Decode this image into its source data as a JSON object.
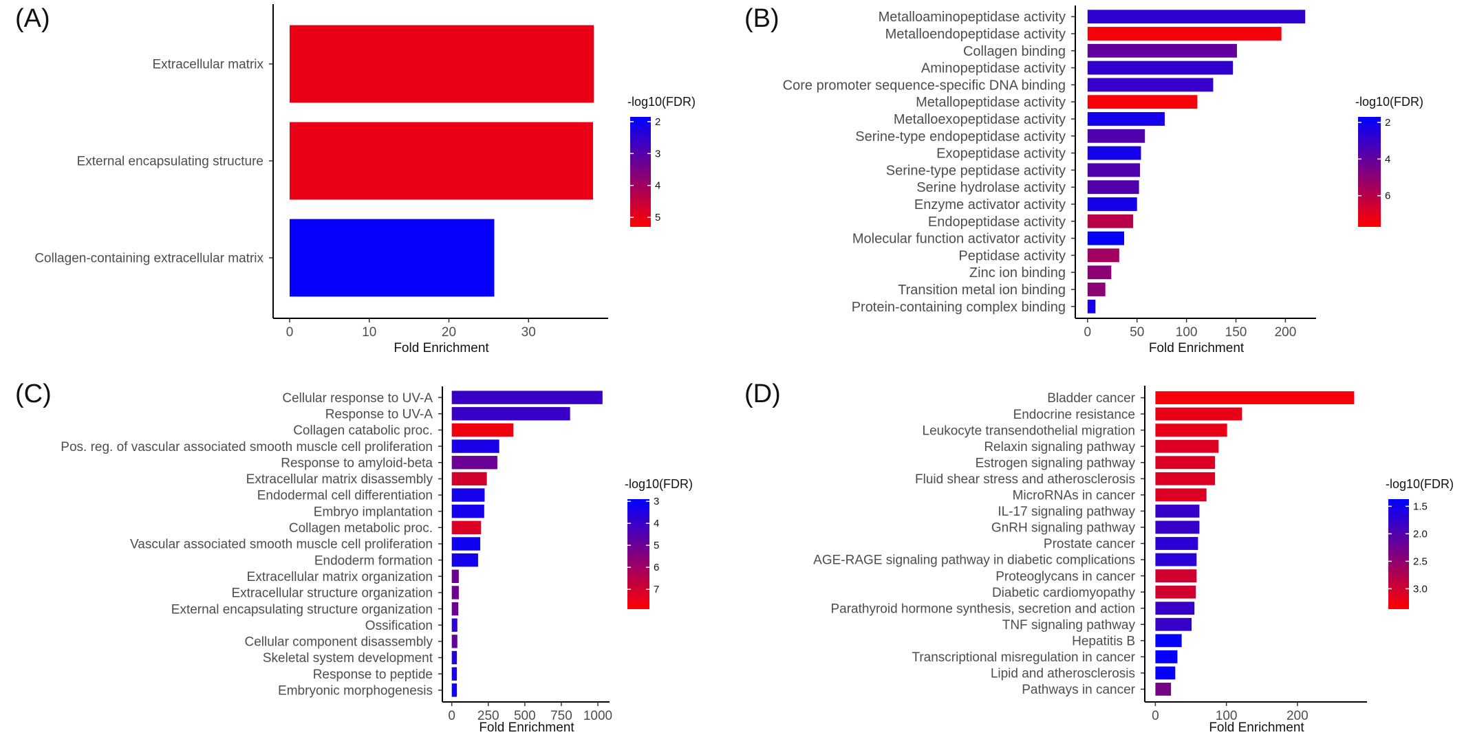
{
  "panels": [
    {
      "label": "(A)",
      "chart_data": {
        "type": "bar",
        "orientation": "horizontal",
        "categories": [
          "Extracellular matrix",
          "External encapsulating structure",
          "Collagen-containing extracellular matrix"
        ],
        "values": [
          38.2,
          38.1,
          25.7
        ],
        "fdr": [
          5.0,
          5.0,
          1.9
        ],
        "xlabel": "Fold Enrichment",
        "xlim": [
          -1.9,
          40.0
        ],
        "xticks": [
          "0",
          "10",
          "20",
          "30"
        ],
        "xtick_values": [
          0,
          10,
          20,
          30
        ],
        "colorbar": {
          "title": "-log10(FDR)",
          "range": [
            1.85,
            5.3
          ],
          "ticks": [
            "2",
            "3",
            "4",
            "5"
          ],
          "tick_values": [
            2,
            3,
            4,
            5
          ],
          "high_color": "#ff0000",
          "low_color": "#0000ff"
        }
      }
    },
    {
      "label": "(B)",
      "chart_data": {
        "type": "bar",
        "orientation": "horizontal",
        "categories": [
          "Metalloaminopeptidase activity",
          "Metalloendopeptidase activity",
          "Collagen binding",
          "Aminopeptidase activity",
          "Core promoter sequence-specific DNA binding",
          "Metallopeptidase activity",
          "Metalloexopeptidase activity",
          "Serine-type endopeptidase activity",
          "Exopeptidase activity",
          "Serine-type peptidase activity",
          "Serine hydrolase activity",
          "Enzyme activator activity",
          "Endopeptidase activity",
          "Molecular function activator activity",
          "Peptidase activity",
          "Zinc ion binding",
          "Transition metal ion binding",
          "Protein-containing complex binding"
        ],
        "values": [
          220,
          196,
          151,
          147,
          127,
          111,
          78,
          58,
          54,
          53,
          52,
          50,
          46,
          37,
          32,
          24,
          18,
          8
        ],
        "fdr": [
          2.8,
          7.5,
          4.0,
          2.8,
          3.0,
          7.5,
          2.2,
          3.6,
          2.2,
          3.6,
          3.6,
          2.2,
          6.0,
          1.8,
          5.5,
          5.0,
          5.0,
          2.2
        ],
        "xlabel": "Fold Enrichment",
        "xlim": [
          -11,
          231
        ],
        "xticks": [
          "0",
          "50",
          "100",
          "150",
          "200"
        ],
        "xtick_values": [
          0,
          50,
          100,
          150,
          200
        ],
        "colorbar": {
          "title": "-log10(FDR)",
          "range": [
            1.7,
            7.7
          ],
          "ticks": [
            "2",
            "4",
            "6"
          ],
          "tick_values": [
            2,
            4,
            6
          ],
          "high_color": "#ff0000",
          "low_color": "#0000ff"
        }
      }
    },
    {
      "label": "(C)",
      "chart_data": {
        "type": "bar",
        "orientation": "horizontal",
        "categories": [
          "Cellular response to UV-A",
          "Response to UV-A",
          "Collagen catabolic proc.",
          "Pos. reg. of vascular associated smooth muscle cell proliferation",
          "Response to amyloid-beta",
          "Extracellular matrix disassembly",
          "Endodermal cell differentiation",
          "Embryo implantation",
          "Collagen metabolic proc.",
          "Vascular associated smooth muscle cell proliferation",
          "Endoderm formation",
          "Extracellular matrix organization",
          "Extracellular structure organization",
          "External encapsulating structure organization",
          "Ossification",
          "Cellular component disassembly",
          "Skeletal system development",
          "Response to peptide",
          "Embryonic morphogenesis"
        ],
        "values": [
          1032,
          810,
          422,
          325,
          312,
          240,
          225,
          222,
          200,
          195,
          180,
          48,
          48,
          45,
          38,
          38,
          35,
          35,
          35
        ],
        "fdr": [
          4.0,
          4.0,
          7.6,
          3.4,
          5.0,
          7.0,
          3.3,
          3.3,
          7.2,
          3.2,
          3.3,
          5.0,
          5.0,
          5.0,
          3.8,
          4.8,
          3.6,
          3.3,
          3.1
        ],
        "xlabel": "Fold Enrichment",
        "xlim": [
          -55,
          1080
        ],
        "xticks": [
          "0",
          "250",
          "500",
          "750",
          "1000"
        ],
        "xtick_values": [
          0,
          250,
          500,
          750,
          1000
        ],
        "colorbar": {
          "title": "-log10(FDR)",
          "range": [
            2.9,
            7.9
          ],
          "ticks": [
            "3",
            "4",
            "5",
            "6",
            "7"
          ],
          "tick_values": [
            3,
            4,
            5,
            6,
            7
          ],
          "high_color": "#ff0000",
          "low_color": "#0000ff"
        }
      }
    },
    {
      "label": "(D)",
      "chart_data": {
        "type": "bar",
        "orientation": "horizontal",
        "categories": [
          "Bladder cancer",
          "Endocrine resistance",
          "Leukocyte transendothelial migration",
          "Relaxin signaling pathway",
          "Estrogen signaling pathway",
          "Fluid shear stress and atherosclerosis",
          "MicroRNAs in cancer",
          "IL-17 signaling pathway",
          "GnRH signaling pathway",
          "Prostate cancer",
          "AGE-RAGE signaling pathway in diabetic complications",
          "Proteoglycans in cancer",
          "Diabetic cardiomyopathy",
          "Parathyroid hormone synthesis, secretion and action",
          "TNF signaling pathway",
          "Hepatitis B",
          "Transcriptional misregulation in cancer",
          "Lipid and atherosclerosis",
          "Pathways in cancer"
        ],
        "values": [
          280,
          122,
          101,
          89,
          84,
          84,
          72,
          62,
          62,
          60,
          58,
          58,
          57,
          55,
          51,
          37,
          31,
          28,
          22
        ],
        "fdr": [
          3.3,
          3.2,
          3.2,
          3.1,
          3.1,
          3.1,
          3.1,
          1.8,
          1.8,
          1.7,
          1.7,
          3.0,
          3.0,
          1.8,
          1.8,
          1.4,
          1.4,
          1.4,
          2.3
        ],
        "xlabel": "Fold Enrichment",
        "xlim": [
          -13,
          298
        ],
        "xticks": [
          "0",
          "100",
          "200"
        ],
        "xtick_values": [
          0,
          100,
          200
        ],
        "colorbar": {
          "title": "-log10(FDR)",
          "range": [
            1.37,
            3.37
          ],
          "ticks": [
            "1.5",
            "2.0",
            "2.5",
            "3.0"
          ],
          "tick_values": [
            1.5,
            2.0,
            2.5,
            3.0
          ],
          "high_color": "#ff0000",
          "low_color": "#0000ff"
        }
      }
    }
  ]
}
